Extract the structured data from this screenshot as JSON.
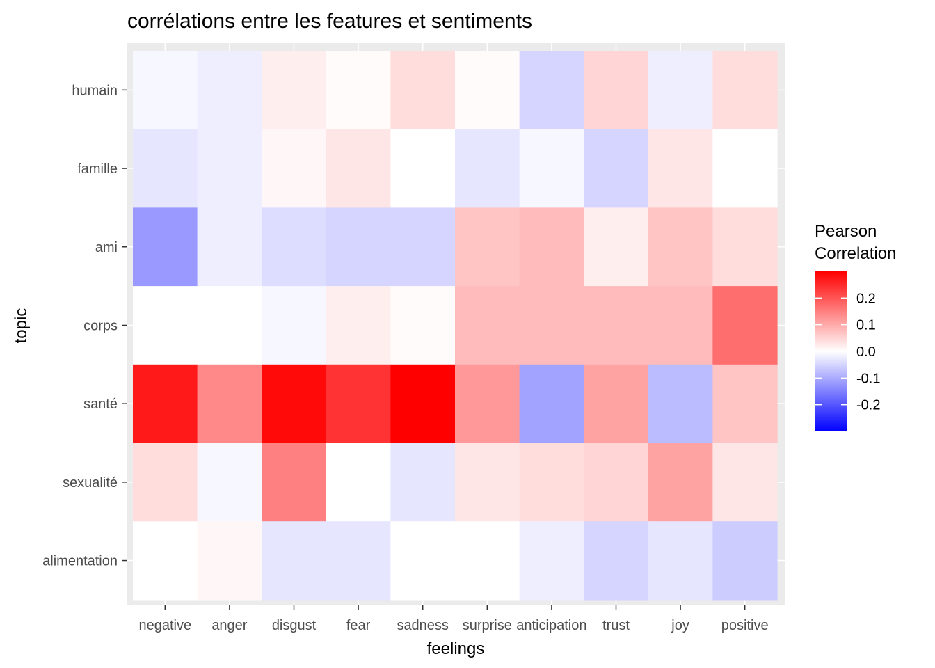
{
  "chart_data": {
    "type": "heatmap",
    "title": "corrélations entre les features et sentiments",
    "xlabel": "feelings",
    "ylabel": "topic",
    "x_categories": [
      "negative",
      "anger",
      "disgust",
      "fear",
      "sadness",
      "surprise",
      "anticipation",
      "trust",
      "joy",
      "positive"
    ],
    "y_categories": [
      "humain",
      "famille",
      "ami",
      "corps",
      "santé",
      "sexualité",
      "alimentation"
    ],
    "values": [
      [
        -0.01,
        -0.02,
        0.02,
        0.005,
        0.04,
        0.005,
        -0.05,
        0.05,
        -0.02,
        0.04
      ],
      [
        -0.03,
        -0.02,
        0.01,
        0.03,
        0.0,
        -0.03,
        -0.01,
        -0.05,
        0.03,
        0.0
      ],
      [
        -0.12,
        -0.02,
        -0.04,
        -0.05,
        -0.05,
        0.07,
        0.08,
        0.02,
        0.07,
        0.04
      ],
      [
        0.0,
        0.0,
        -0.01,
        0.02,
        0.005,
        0.08,
        0.08,
        0.08,
        0.08,
        0.17
      ],
      [
        0.27,
        0.14,
        0.29,
        0.24,
        0.31,
        0.12,
        -0.11,
        0.11,
        -0.08,
        0.07
      ],
      [
        0.04,
        -0.01,
        0.15,
        0.0,
        -0.03,
        0.03,
        0.04,
        0.05,
        0.11,
        0.03
      ],
      [
        0.0,
        0.01,
        -0.03,
        -0.03,
        0.0,
        0.0,
        -0.02,
        -0.05,
        -0.03,
        -0.06
      ]
    ],
    "color_scale": {
      "low": "#0000ff",
      "mid": "#ffffff",
      "high": "#ff0000",
      "range": [
        -0.3,
        0.3
      ]
    },
    "legend": {
      "title_line1": "Pearson",
      "title_line2": "Correlation",
      "placement": "right",
      "ticks": [
        0.2,
        0.1,
        0.0,
        -0.1,
        -0.2
      ],
      "tick_labels": [
        "0.2",
        "0.1",
        "0.0",
        "-0.1",
        "-0.2"
      ]
    },
    "panel_background": "#ebebeb",
    "grid": true
  }
}
